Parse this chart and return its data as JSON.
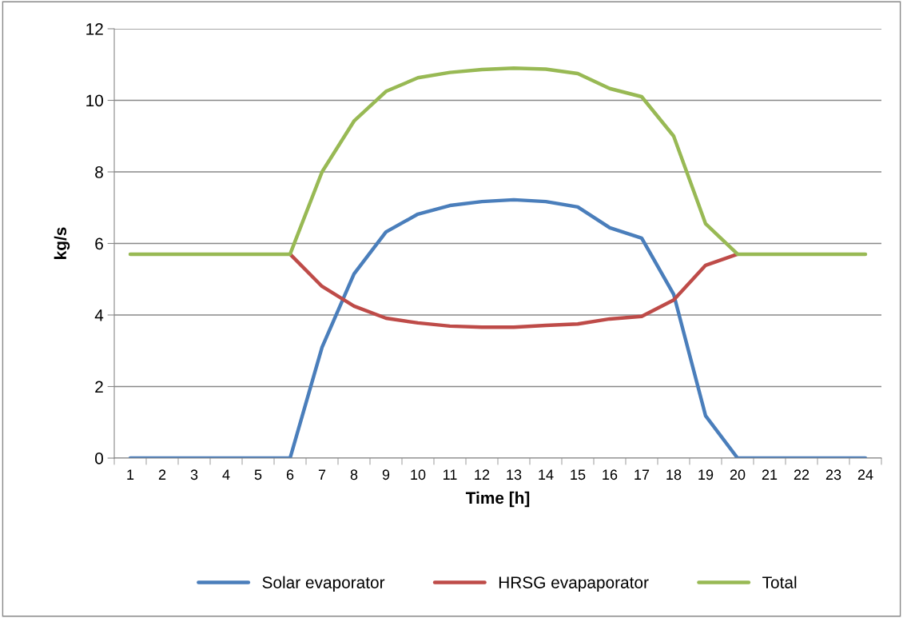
{
  "chart_data": {
    "type": "line",
    "xlabel": "Time [h]",
    "ylabel": "kg/s",
    "categories": [
      "1",
      "2",
      "3",
      "4",
      "5",
      "6",
      "7",
      "8",
      "9",
      "10",
      "11",
      "12",
      "13",
      "14",
      "15",
      "16",
      "17",
      "18",
      "19",
      "20",
      "21",
      "22",
      "23",
      "24"
    ],
    "series": [
      {
        "name": "Solar evaporator",
        "color": "#4a7ebb",
        "values": [
          0,
          0,
          0,
          0,
          0,
          0,
          3.1,
          5.15,
          6.32,
          6.82,
          7.06,
          7.17,
          7.22,
          7.17,
          7.02,
          6.44,
          6.15,
          4.58,
          1.18,
          0,
          0,
          0,
          0,
          0
        ]
      },
      {
        "name": "HRSG evapaporator",
        "color": "#be4b48",
        "values": [
          null,
          null,
          null,
          null,
          null,
          5.7,
          4.8,
          4.25,
          3.91,
          3.78,
          3.69,
          3.66,
          3.66,
          3.71,
          3.75,
          3.89,
          3.96,
          4.42,
          5.39,
          5.7,
          null,
          null,
          null,
          null
        ]
      },
      {
        "name": "Total",
        "color": "#98b954",
        "values": [
          5.7,
          5.7,
          5.7,
          5.7,
          5.7,
          5.7,
          8.0,
          9.42,
          10.25,
          10.63,
          10.78,
          10.86,
          10.9,
          10.87,
          10.75,
          10.33,
          10.1,
          9.0,
          6.55,
          5.7,
          5.7,
          5.7,
          5.7,
          5.7
        ]
      }
    ],
    "ylim": [
      0,
      12
    ],
    "yticks": [
      0,
      2,
      4,
      6,
      8,
      10,
      12
    ],
    "grid": "y",
    "legend": "bottom",
    "marker": "none",
    "line_style": "solid"
  }
}
